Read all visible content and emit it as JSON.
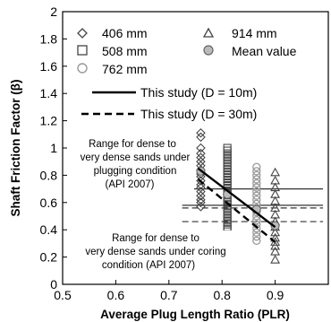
{
  "chart_data": {
    "type": "scatter",
    "title": "",
    "xlabel": "Average Plug Length Ratio (PLR)",
    "ylabel": "Shaft Friction Factor (β)",
    "xlim": [
      0.5,
      1.0
    ],
    "ylim": [
      0,
      2
    ],
    "xticks": [
      "0.5",
      "0.6",
      "0.7",
      "0.8",
      "0.9"
    ],
    "xtick_values": [
      0.5,
      0.6,
      0.7,
      0.8,
      0.9
    ],
    "yticks": [
      "0",
      "0.2",
      "0.4",
      "0.6",
      "0.8",
      "1",
      "1.2",
      "1.4",
      "1.6",
      "1.8",
      "2"
    ],
    "ytick_values": [
      0,
      0.2,
      0.4,
      0.6,
      0.8,
      1.0,
      1.2,
      1.4,
      1.6,
      1.8,
      2.0
    ],
    "grid": false,
    "legend_position": "top",
    "series": [
      {
        "name": "406 mm",
        "marker": "diamond",
        "x": 0.76,
        "values": [
          1.11,
          1.08,
          1.0,
          0.96,
          0.93,
          0.9,
          0.87,
          0.84,
          0.81,
          0.79,
          0.76,
          0.73,
          0.71,
          0.68,
          0.65,
          0.62,
          0.6,
          0.57
        ]
      },
      {
        "name": "508 mm",
        "marker": "square",
        "x": 0.81,
        "values": [
          1.0,
          0.98,
          0.96,
          0.94,
          0.92,
          0.9,
          0.88,
          0.86,
          0.84,
          0.82,
          0.8,
          0.78,
          0.76,
          0.74,
          0.72,
          0.7,
          0.68,
          0.66,
          0.64,
          0.62,
          0.6,
          0.58,
          0.56,
          0.54,
          0.52,
          0.5,
          0.48,
          0.46,
          0.44,
          0.42,
          0.4
        ]
      },
      {
        "name": "762 mm",
        "marker": "circle",
        "x": 0.865,
        "values": [
          0.86,
          0.83,
          0.8,
          0.77,
          0.74,
          0.71,
          0.68,
          0.65,
          0.62,
          0.59,
          0.56,
          0.53,
          0.5,
          0.47,
          0.44,
          0.41,
          0.38,
          0.35,
          0.32
        ]
      },
      {
        "name": "914 mm",
        "marker": "triangle",
        "x": 0.9,
        "values": [
          0.82,
          0.76,
          0.71,
          0.66,
          0.61,
          0.56,
          0.51,
          0.46,
          0.42,
          0.38,
          0.34,
          0.31,
          0.28,
          0.24,
          0.18
        ]
      },
      {
        "name": "Mean value",
        "marker": "circle-gray",
        "x": [
          0.76,
          0.81,
          0.865,
          0.9
        ],
        "values": [
          0.83,
          0.66,
          0.55,
          0.43
        ]
      }
    ],
    "lines": [
      {
        "name": "This study (D = 10m)",
        "style": "solid",
        "x": [
          0.755,
          0.9
        ],
        "y": [
          0.85,
          0.42
        ]
      },
      {
        "name": "This study (D = 30m)",
        "style": "dashed",
        "x": [
          0.755,
          0.9
        ],
        "y": [
          0.77,
          0.31
        ]
      }
    ],
    "ranges": [
      {
        "label": [
          "Range for dense to",
          "very dense sands under",
          "plugging condition",
          "(API 2007)"
        ],
        "style": "solid",
        "x": [
          0.725,
          0.99
        ],
        "y": [
          0.58,
          0.7
        ]
      },
      {
        "label": [
          "Range for dense to",
          "very dense sands under coring",
          "condition (API 2007)"
        ],
        "style": "dashed",
        "x": [
          0.725,
          0.99
        ],
        "y": [
          0.46,
          0.56
        ]
      }
    ]
  },
  "colors": {
    "axis": "#000000",
    "marker": "#444444",
    "circle_open": "#999999",
    "mean_fill": "#bbbbbb",
    "range_line": "#333333"
  }
}
